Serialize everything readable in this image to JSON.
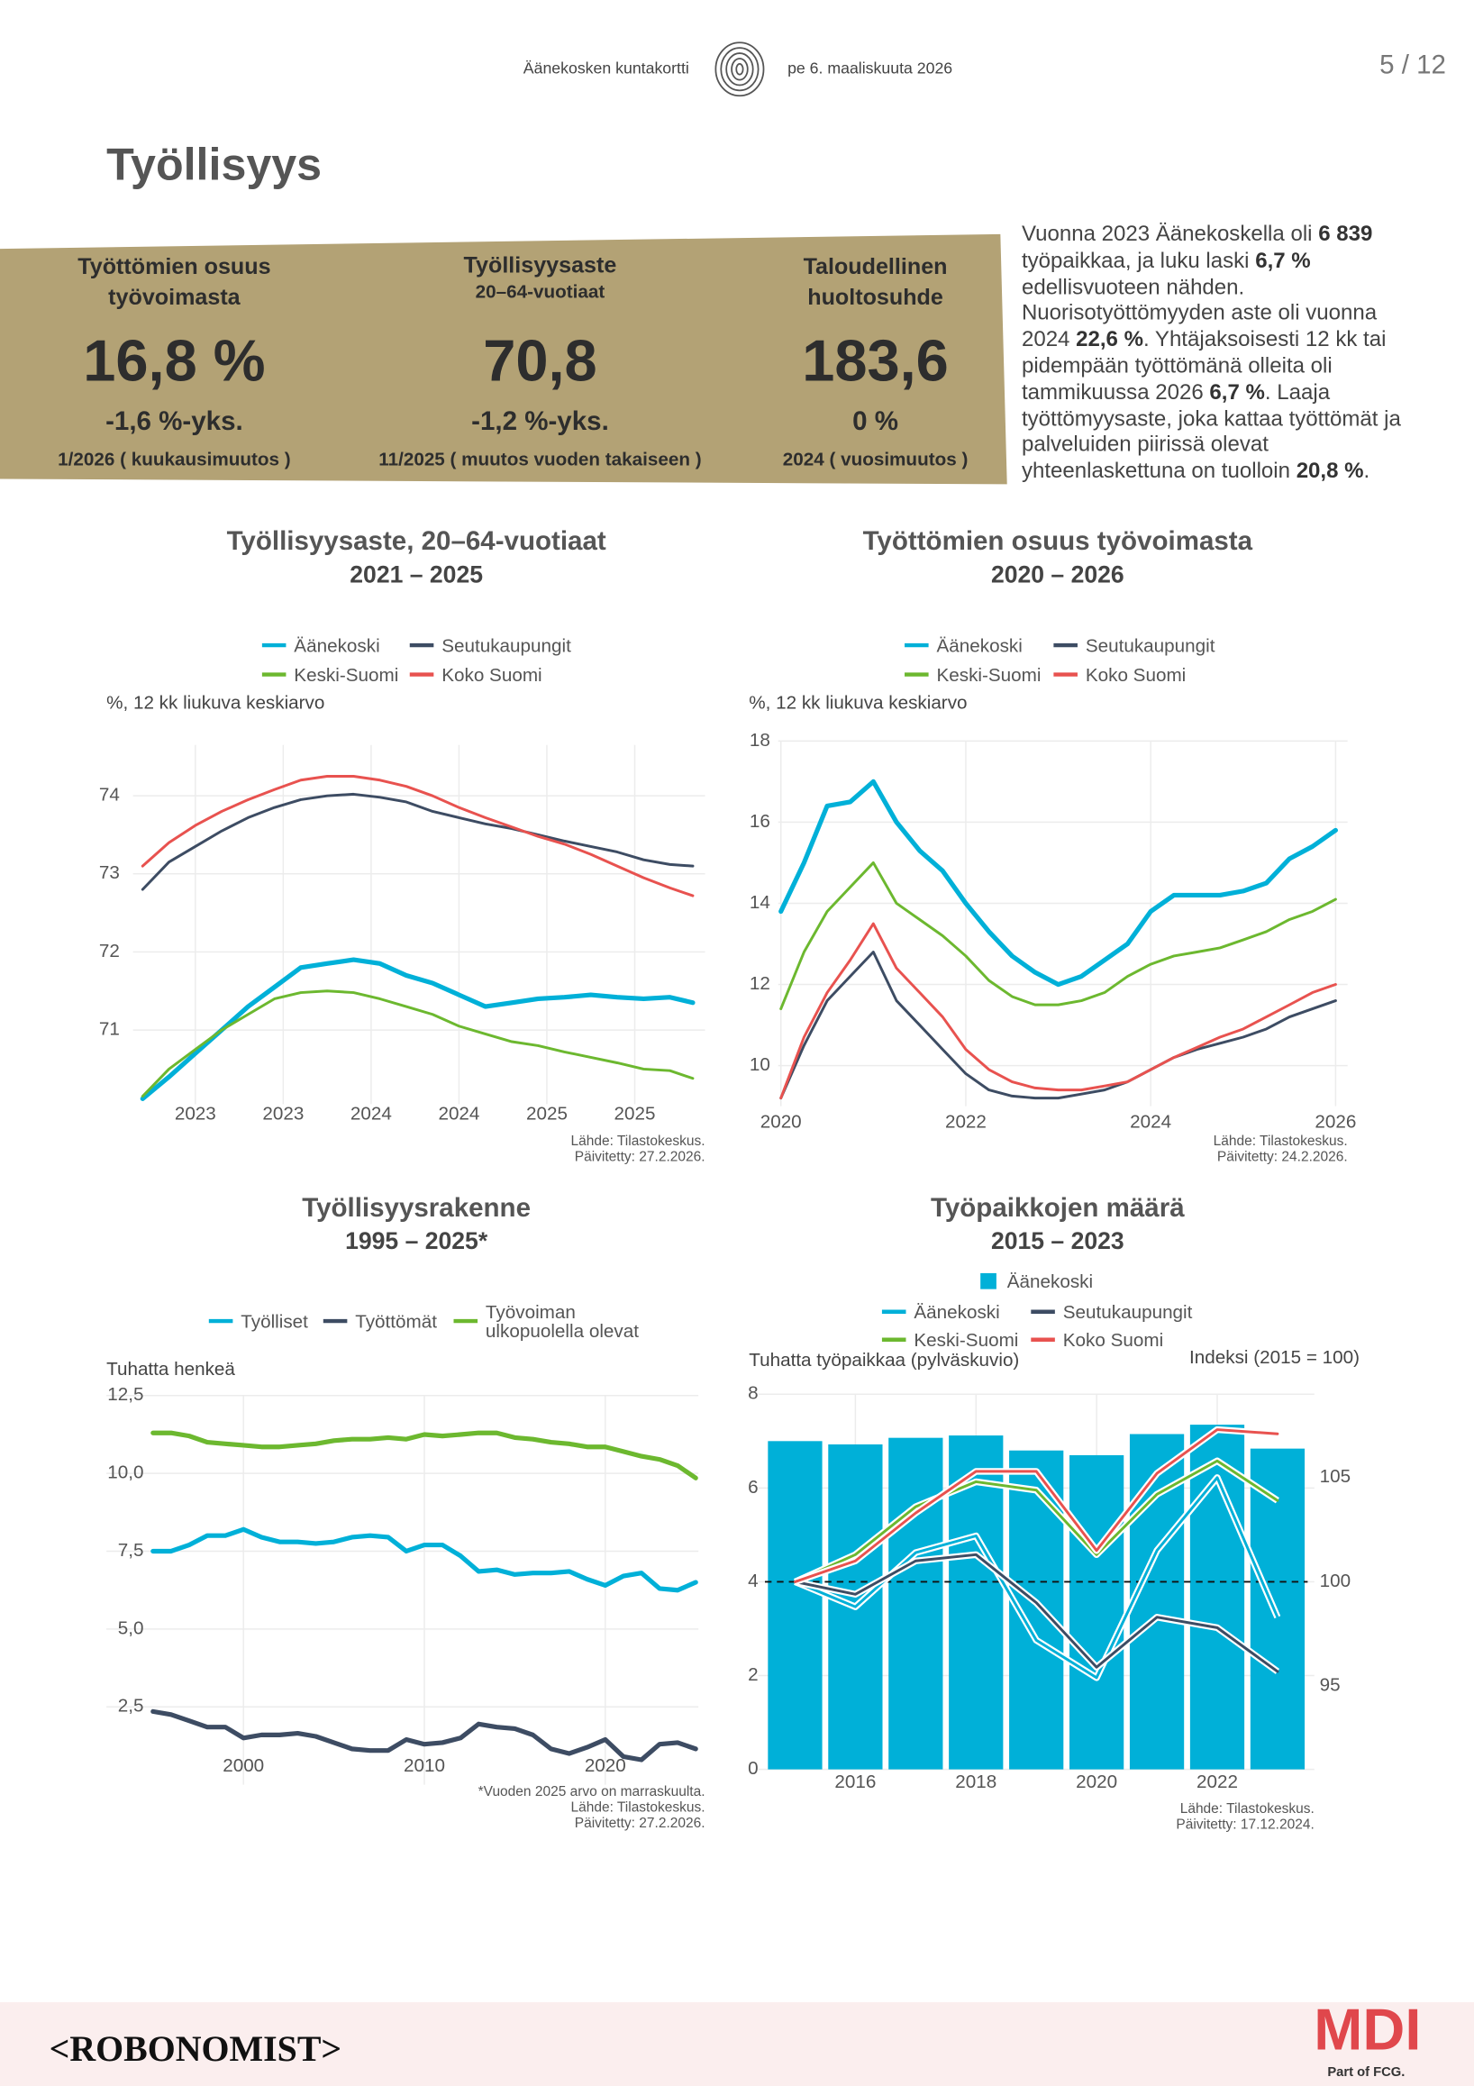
{
  "header": {
    "municipality": "Äänekosken kuntakortti",
    "date": "pe 6. maaliskuuta 2026",
    "page": "5 / 12"
  },
  "title": "Työllisyys",
  "kpis": [
    {
      "title": "Työttömien osuus työvoimasta",
      "value": "16,8 %",
      "change": "-1,6 %-yks.",
      "period": "1/2026 ( kuukausimuutos )"
    },
    {
      "title": "Työllisyysaste",
      "subtitle": "20–64-vuotiaat",
      "value": "70,8",
      "change": "-1,2 %-yks.",
      "period": "11/2025 ( muutos vuoden takaiseen )"
    },
    {
      "title": "Taloudellinen huoltosuhde",
      "value": "183,6",
      "change": "0 %",
      "period": "2024 ( vuosimuutos )"
    }
  ],
  "summary": [
    "Vuonna 2023 Äänekoskella oli ",
    "6 839",
    " työpaikkaa, ja luku laski ",
    "6,7 %",
    " edellisvuoteen nähden. Nuorisotyöttömyyden aste oli vuonna 2024 ",
    "22,6 %",
    ". Yhtäjaksoisesti 12 kk tai pidempään työttömänä olleita oli tammikuussa 2026 ",
    "6,7 %",
    ". Laaja työttömyysaste, joka kattaa työttömät ja palveluiden piirissä olevat yhteenlaskettuna on tuolloin ",
    "20,8 %",
    "."
  ],
  "chart_data": [
    {
      "type": "line",
      "title": "Työllisyysaste, 20–64-vuotiaat",
      "subtitle": "2021 – 2025",
      "y_label": "%, 12 kk liukuva keskiarvo",
      "grid": true,
      "x": [
        2022.7,
        2022.85,
        2023.0,
        2023.15,
        2023.3,
        2023.45,
        2023.6,
        2023.75,
        2023.9,
        2024.05,
        2024.2,
        2024.35,
        2024.5,
        2024.65,
        2024.8,
        2024.95,
        2025.1,
        2025.25,
        2025.4,
        2025.55,
        2025.7,
        2025.83
      ],
      "xlim": [
        2022.6,
        2025.9
      ],
      "xticks": [
        2023,
        {
          "value": 2023.5,
          "label": "2023"
        },
        2024,
        {
          "value": 2024.5,
          "label": "2024"
        },
        2025,
        {
          "value": 2025.5,
          "label": "2025"
        }
      ],
      "ylim": [
        70.05,
        74.65
      ],
      "yticks": [
        71,
        72,
        73,
        74
      ],
      "series": [
        {
          "name": "Äänekoski",
          "color": "#00b0d8",
          "values": [
            70.12,
            70.4,
            70.7,
            71.0,
            71.3,
            71.55,
            71.8,
            71.85,
            71.9,
            71.85,
            71.7,
            71.6,
            71.45,
            71.3,
            71.35,
            71.4,
            71.42,
            71.45,
            71.42,
            71.4,
            71.42,
            71.35
          ]
        },
        {
          "name": "Seutukaupungit",
          "color": "#3d4c63",
          "values": [
            72.8,
            73.15,
            73.35,
            73.55,
            73.72,
            73.85,
            73.95,
            74.0,
            74.02,
            73.98,
            73.92,
            73.8,
            73.72,
            73.64,
            73.58,
            73.5,
            73.42,
            73.35,
            73.28,
            73.18,
            73.12,
            73.1
          ]
        },
        {
          "name": "Keski-Suomi",
          "color": "#6cb82f",
          "values": [
            70.15,
            70.5,
            70.75,
            71.0,
            71.2,
            71.4,
            71.48,
            71.5,
            71.48,
            71.4,
            71.3,
            71.2,
            71.05,
            70.95,
            70.85,
            70.8,
            70.72,
            70.65,
            70.58,
            70.5,
            70.48,
            70.38
          ]
        },
        {
          "name": "Koko Suomi",
          "color": "#e8524f",
          "values": [
            73.1,
            73.4,
            73.62,
            73.8,
            73.95,
            74.08,
            74.2,
            74.25,
            74.25,
            74.2,
            74.12,
            74.0,
            73.85,
            73.72,
            73.6,
            73.48,
            73.38,
            73.25,
            73.1,
            72.95,
            72.82,
            72.72
          ]
        }
      ],
      "source": [
        "Lähde: Tilastokeskus.",
        "Päivitetty: 27.2.2026."
      ]
    },
    {
      "type": "line",
      "title": "Työttömien osuus työvoimasta",
      "subtitle": "2020 – 2026",
      "y_label": "%, 12 kk liukuva keskiarvo",
      "grid": true,
      "x": [
        2020,
        2020.25,
        2020.5,
        2020.75,
        2021,
        2021.25,
        2021.5,
        2021.75,
        2022,
        2022.25,
        2022.5,
        2022.75,
        2023,
        2023.25,
        2023.5,
        2023.75,
        2024,
        2024.25,
        2024.5,
        2024.75,
        2025,
        2025.25,
        2025.5,
        2025.75,
        2026
      ],
      "xlim": [
        2020,
        2026
      ],
      "xticks": [
        2020,
        2022,
        2024,
        2026
      ],
      "ylim": [
        9,
        18
      ],
      "yticks": [
        10,
        12,
        14,
        16,
        18
      ],
      "series": [
        {
          "name": "Äänekoski",
          "color": "#00b0d8",
          "values": [
            13.8,
            15.0,
            16.4,
            16.5,
            17.0,
            16.0,
            15.3,
            14.8,
            14.0,
            13.3,
            12.7,
            12.3,
            12.0,
            12.2,
            12.6,
            13.0,
            13.8,
            14.2,
            14.2,
            14.2,
            14.3,
            14.5,
            15.1,
            15.4,
            15.8
          ]
        },
        {
          "name": "Seutukaupungit",
          "color": "#3d4c63",
          "values": [
            9.2,
            10.5,
            11.6,
            12.2,
            12.8,
            11.6,
            11.0,
            10.4,
            9.8,
            9.4,
            9.25,
            9.2,
            9.2,
            9.3,
            9.4,
            9.6,
            9.9,
            10.2,
            10.4,
            10.55,
            10.7,
            10.9,
            11.2,
            11.4,
            11.6
          ]
        },
        {
          "name": "Keski-Suomi",
          "color": "#6cb82f",
          "values": [
            11.4,
            12.8,
            13.8,
            14.4,
            15.0,
            14.0,
            13.6,
            13.2,
            12.7,
            12.1,
            11.7,
            11.5,
            11.5,
            11.6,
            11.8,
            12.2,
            12.5,
            12.7,
            12.8,
            12.9,
            13.1,
            13.3,
            13.6,
            13.8,
            14.1
          ]
        },
        {
          "name": "Koko Suomi",
          "color": "#e8524f",
          "values": [
            9.2,
            10.7,
            11.8,
            12.6,
            13.5,
            12.4,
            11.8,
            11.2,
            10.4,
            9.9,
            9.6,
            9.45,
            9.4,
            9.4,
            9.5,
            9.6,
            9.9,
            10.2,
            10.45,
            10.7,
            10.9,
            11.2,
            11.5,
            11.8,
            12.0
          ]
        }
      ],
      "source": [
        "Lähde: Tilastokeskus.",
        "Päivitetty: 24.2.2026."
      ]
    },
    {
      "type": "line",
      "title": "Työllisyysrakenne",
      "subtitle": "1995 – 2025*",
      "y_label": "Tuhatta henkeä",
      "grid": true,
      "x": [
        1995,
        1996,
        1997,
        1998,
        1999,
        2000,
        2001,
        2002,
        2003,
        2004,
        2005,
        2006,
        2007,
        2008,
        2009,
        2010,
        2011,
        2012,
        2013,
        2014,
        2015,
        2016,
        2017,
        2018,
        2019,
        2020,
        2021,
        2022,
        2023,
        2024,
        2025
      ],
      "xlim": [
        1995,
        2025
      ],
      "xticks": [
        2000,
        2010,
        2020
      ],
      "ylim": [
        0,
        12.5
      ],
      "yticks": [
        {
          "value": 2.5,
          "label": "2,5"
        },
        {
          "value": 5,
          "label": "5,0"
        },
        {
          "value": 7.5,
          "label": "7,5"
        },
        {
          "value": 10,
          "label": "10,0"
        },
        {
          "value": 12.5,
          "label": "12,5"
        }
      ],
      "series": [
        {
          "name": "Työlliset",
          "color": "#00b0d8",
          "values": [
            7.5,
            7.5,
            7.7,
            8.0,
            8.0,
            8.2,
            7.95,
            7.8,
            7.8,
            7.75,
            7.8,
            7.95,
            8.0,
            7.95,
            7.5,
            7.7,
            7.7,
            7.35,
            6.85,
            6.9,
            6.75,
            6.8,
            6.8,
            6.85,
            6.6,
            6.4,
            6.7,
            6.8,
            6.3,
            6.25,
            6.5
          ]
        },
        {
          "name": "Työttömät",
          "color": "#3d4c63",
          "values": [
            2.35,
            2.25,
            2.05,
            1.85,
            1.85,
            1.5,
            1.6,
            1.6,
            1.65,
            1.55,
            1.35,
            1.15,
            1.1,
            1.1,
            1.45,
            1.3,
            1.35,
            1.5,
            1.95,
            1.85,
            1.8,
            1.6,
            1.15,
            1.0,
            1.2,
            1.45,
            0.9,
            0.8,
            1.3,
            1.35,
            1.15
          ]
        },
        {
          "name": "Työvoiman ulkopuolella olevat",
          "color": "#6cb82f",
          "values": [
            11.3,
            11.3,
            11.2,
            11.0,
            10.95,
            10.9,
            10.85,
            10.85,
            10.9,
            10.95,
            11.05,
            11.1,
            11.1,
            11.15,
            11.1,
            11.25,
            11.2,
            11.25,
            11.3,
            11.3,
            11.15,
            11.1,
            11.0,
            10.95,
            10.85,
            10.85,
            10.7,
            10.55,
            10.45,
            10.25,
            9.85
          ]
        }
      ],
      "source": [
        "*Vuoden 2025 arvo on marraskuulta.",
        "Lähde: Tilastokeskus.",
        "Päivitetty: 27.2.2026."
      ]
    },
    {
      "type": "bar",
      "title": "Työpaikkojen määrä",
      "subtitle": "2015 – 2023",
      "y_label": "Tuhatta työpaikkaa (pylväskuvio)",
      "y2_label": "Indeksi (2015 = 100)",
      "grid": true,
      "x": [
        2015,
        2016,
        2017,
        2018,
        2019,
        2020,
        2021,
        2022,
        2023
      ],
      "xlim": [
        2014.5,
        2023.5
      ],
      "xticks": [
        2016,
        2018,
        2020,
        2022
      ],
      "ylim": [
        0,
        8
      ],
      "yticks": [
        0,
        2,
        4,
        6,
        8
      ],
      "y2lim": [
        91,
        109
      ],
      "y2ticks": [
        95,
        100,
        105
      ],
      "y2_reference_line": 100,
      "bars": {
        "name": "Äänekoski",
        "color": "#00b0d8",
        "values": [
          7.0,
          6.93,
          7.07,
          7.12,
          6.8,
          6.7,
          7.15,
          7.35,
          6.84
        ]
      },
      "series": [
        {
          "name": "Äänekoski",
          "color": "#00b0d8",
          "axis": "y2",
          "values": [
            100,
            98.8,
            101.4,
            102.2,
            97.2,
            95.4,
            101.5,
            105.0,
            98.3
          ]
        },
        {
          "name": "Seutukaupungit",
          "color": "#3d4c63",
          "axis": "y2",
          "values": [
            100,
            99.4,
            101.0,
            101.3,
            99.0,
            95.9,
            98.3,
            97.8,
            95.7
          ]
        },
        {
          "name": "Keski-Suomi",
          "color": "#6cb82f",
          "axis": "y2",
          "values": [
            100,
            101.3,
            103.6,
            104.8,
            104.4,
            101.3,
            104.2,
            105.8,
            103.9
          ]
        },
        {
          "name": "Koko Suomi",
          "color": "#e8524f",
          "axis": "y2",
          "values": [
            100,
            101.0,
            103.3,
            105.3,
            105.3,
            101.5,
            105.2,
            107.3,
            107.1
          ]
        }
      ],
      "source": [
        "Lähde: Tilastokeskus.",
        "Päivitetty: 17.12.2024."
      ]
    }
  ],
  "footer": {
    "left": "<ROBONOMIST>",
    "right": "MDI",
    "right_note": "Part of FCG."
  }
}
